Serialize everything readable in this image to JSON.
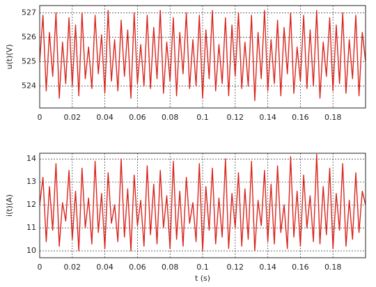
{
  "chart_data": [
    {
      "type": "line",
      "ylabel": "u(t)(V)",
      "color": "#d9241c",
      "grid": true,
      "xlim": [
        0,
        0.2
      ],
      "xticks": [
        0,
        0.02,
        0.04,
        0.06,
        0.08,
        0.1,
        0.12,
        0.14,
        0.16,
        0.18
      ],
      "ylim": [
        523.1,
        527.3
      ],
      "yticks": [
        524,
        525,
        526,
        527
      ],
      "x": [
        0,
        0.002,
        0.004,
        0.006,
        0.008,
        0.01,
        0.012,
        0.014,
        0.016,
        0.018,
        0.02,
        0.022,
        0.024,
        0.026,
        0.028,
        0.03,
        0.032,
        0.034,
        0.036,
        0.038,
        0.04,
        0.042,
        0.044,
        0.046,
        0.048,
        0.05,
        0.052,
        0.054,
        0.056,
        0.058,
        0.06,
        0.062,
        0.064,
        0.066,
        0.068,
        0.07,
        0.072,
        0.074,
        0.076,
        0.078,
        0.08,
        0.082,
        0.084,
        0.086,
        0.088,
        0.09,
        0.092,
        0.094,
        0.096,
        0.098,
        0.1,
        0.102,
        0.104,
        0.106,
        0.108,
        0.11,
        0.112,
        0.114,
        0.116,
        0.118,
        0.12,
        0.122,
        0.124,
        0.126,
        0.128,
        0.13,
        0.132,
        0.134,
        0.136,
        0.138,
        0.14,
        0.142,
        0.144,
        0.146,
        0.148,
        0.15,
        0.152,
        0.154,
        0.156,
        0.158,
        0.16,
        0.162,
        0.164,
        0.166,
        0.168,
        0.17,
        0.172,
        0.174,
        0.176,
        0.178,
        0.18,
        0.182,
        0.184,
        0.186,
        0.188,
        0.19,
        0.192,
        0.194,
        0.196,
        0.198,
        0.2
      ],
      "values": [
        525.0,
        526.9,
        523.8,
        526.2,
        524.4,
        527.0,
        523.5,
        525.8,
        524.1,
        526.8,
        524.0,
        526.5,
        523.6,
        527.0,
        524.3,
        525.6,
        523.9,
        526.9,
        524.5,
        526.1,
        523.7,
        527.1,
        524.2,
        525.9,
        523.8,
        526.7,
        524.4,
        526.3,
        523.5,
        527.0,
        524.1,
        525.7,
        524.0,
        526.9,
        523.9,
        526.4,
        524.3,
        527.1,
        523.7,
        525.8,
        524.2,
        526.8,
        523.6,
        526.2,
        524.5,
        527.0,
        523.9,
        525.9,
        524.0,
        526.9,
        523.5,
        526.3,
        524.3,
        527.1,
        523.8,
        525.7,
        524.1,
        526.8,
        523.6,
        526.5,
        524.4,
        527.0,
        523.9,
        525.8,
        524.0,
        526.9,
        523.4,
        526.2,
        524.3,
        527.1,
        523.8,
        525.9,
        524.1,
        526.7,
        523.6,
        526.4,
        524.5,
        527.0,
        523.7,
        525.6,
        524.2,
        526.9,
        523.9,
        526.3,
        524.0,
        527.1,
        523.5,
        525.8,
        524.4,
        526.8,
        523.8,
        526.5,
        524.1,
        527.0,
        523.7,
        525.9,
        524.3,
        526.9,
        523.6,
        526.2,
        525.0
      ]
    },
    {
      "type": "line",
      "ylabel": "i(t)(A)",
      "xlabel": "t (s)",
      "color": "#d9241c",
      "grid": true,
      "xlim": [
        0,
        0.2
      ],
      "xticks": [
        0,
        0.02,
        0.04,
        0.06,
        0.08,
        0.1,
        0.12,
        0.14,
        0.16,
        0.18
      ],
      "ylim": [
        9.7,
        14.25
      ],
      "yticks": [
        10,
        11,
        12,
        13,
        14
      ],
      "x": [
        0,
        0.002,
        0.004,
        0.006,
        0.008,
        0.01,
        0.012,
        0.014,
        0.016,
        0.018,
        0.02,
        0.022,
        0.024,
        0.026,
        0.028,
        0.03,
        0.032,
        0.034,
        0.036,
        0.038,
        0.04,
        0.042,
        0.044,
        0.046,
        0.048,
        0.05,
        0.052,
        0.054,
        0.056,
        0.058,
        0.06,
        0.062,
        0.064,
        0.066,
        0.068,
        0.07,
        0.072,
        0.074,
        0.076,
        0.078,
        0.08,
        0.082,
        0.084,
        0.086,
        0.088,
        0.09,
        0.092,
        0.094,
        0.096,
        0.098,
        0.1,
        0.102,
        0.104,
        0.106,
        0.108,
        0.11,
        0.112,
        0.114,
        0.116,
        0.118,
        0.12,
        0.122,
        0.124,
        0.126,
        0.128,
        0.13,
        0.132,
        0.134,
        0.136,
        0.138,
        0.14,
        0.142,
        0.144,
        0.146,
        0.148,
        0.15,
        0.152,
        0.154,
        0.156,
        0.158,
        0.16,
        0.162,
        0.164,
        0.166,
        0.168,
        0.17,
        0.172,
        0.174,
        0.176,
        0.178,
        0.18,
        0.182,
        0.184,
        0.186,
        0.188,
        0.19,
        0.192,
        0.194,
        0.196,
        0.198,
        0.2
      ],
      "values": [
        12.0,
        13.2,
        10.4,
        12.8,
        10.9,
        13.8,
        10.2,
        12.1,
        11.3,
        13.5,
        10.5,
        12.6,
        10.0,
        13.6,
        11.0,
        12.3,
        10.3,
        13.9,
        10.8,
        12.5,
        10.1,
        13.4,
        11.2,
        12.0,
        10.4,
        14.0,
        10.6,
        12.7,
        10.0,
        13.3,
        11.1,
        12.2,
        10.2,
        13.7,
        10.7,
        12.9,
        10.3,
        13.5,
        11.0,
        12.4,
        10.1,
        13.9,
        10.5,
        12.6,
        10.2,
        13.2,
        11.2,
        12.1,
        10.4,
        13.8,
        10.0,
        12.8,
        10.9,
        13.6,
        10.3,
        12.3,
        10.6,
        14.0,
        10.1,
        12.5,
        11.0,
        13.4,
        10.2,
        12.7,
        10.5,
        13.9,
        10.0,
        12.2,
        11.1,
        13.5,
        10.4,
        12.9,
        10.3,
        13.7,
        10.8,
        12.0,
        10.1,
        14.1,
        10.6,
        12.6,
        10.2,
        13.3,
        11.0,
        12.4,
        10.4,
        14.2,
        10.3,
        12.8,
        10.7,
        13.6,
        10.1,
        12.5,
        10.9,
        13.8,
        10.2,
        12.2,
        10.5,
        13.4,
        10.8,
        12.6,
        12.0
      ]
    }
  ]
}
